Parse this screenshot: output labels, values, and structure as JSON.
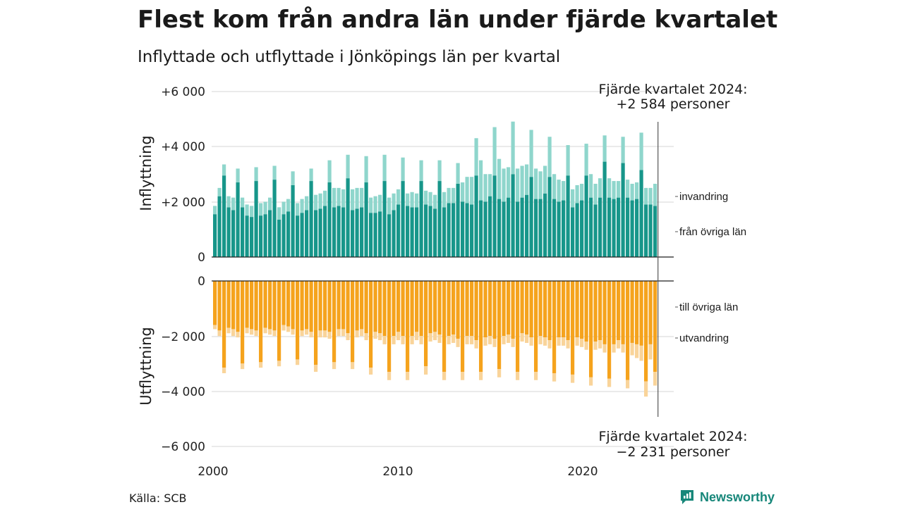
{
  "title": "Flest kom från andra län under fjärde kvartalet",
  "subtitle": "Inflyttade och utflyttade i Jönköpings län per kvartal",
  "source": "Källa: SCB",
  "brand": "Newsworthy",
  "colors": {
    "in_other": "#17968a",
    "in_immig": "#8fd6cc",
    "out_other": "#f5a31d",
    "out_emig": "#f9d49a",
    "grid": "#dddddd"
  },
  "top_annotation": {
    "line1": "Fjärde kvartalet 2024:",
    "line2": "+2 584 personer"
  },
  "bottom_annotation": {
    "line1": "Fjärde kvartalet 2024:",
    "line2": "−2 231 personer"
  },
  "chart_data": {
    "type": "bar",
    "stacked": true,
    "x_start": "2000Q1",
    "x_ticks": [
      "2000",
      "2010",
      "2020"
    ],
    "panels": [
      {
        "ylabel": "Inflyttning",
        "ylim": [
          0,
          6000
        ],
        "yticks": [
          0,
          2000,
          4000,
          6000
        ],
        "ytick_labels": [
          "0",
          "+2 000",
          "+4 000",
          "+6 000"
        ],
        "series": [
          {
            "name": "från övriga län",
            "values": [
              1550,
              2200,
              2950,
              1800,
              1700,
              2700,
              1800,
              1500,
              1450,
              2750,
              1500,
              1550,
              1700,
              2800,
              1350,
              1550,
              1650,
              2600,
              1500,
              1600,
              1700,
              2750,
              1700,
              1750,
              1850,
              2700,
              1800,
              1850,
              1800,
              2850,
              1700,
              1750,
              1800,
              2700,
              1600,
              1600,
              1650,
              2750,
              1550,
              1700,
              1900,
              2750,
              1850,
              1800,
              1800,
              2750,
              1900,
              1850,
              1750,
              2750,
              1800,
              1950,
              1950,
              2650,
              2000,
              1950,
              1900,
              2950,
              2050,
              2000,
              2200,
              2950,
              2100,
              2000,
              2150,
              3000,
              2000,
              2150,
              2250,
              2900,
              2100,
              2100,
              2300,
              2900,
              2100,
              2000,
              2050,
              2950,
              1800,
              1950,
              2050,
              2950,
              2150,
              1900,
              2150,
              3450,
              2150,
              2100,
              2150,
              3400,
              2150,
              2050,
              2100,
              3150,
              1900,
              1900,
              1850
            ]
          },
          {
            "name": "invandring",
            "values": [
              300,
              300,
              400,
              400,
              450,
              500,
              350,
              400,
              400,
              500,
              450,
              450,
              450,
              500,
              450,
              450,
              450,
              500,
              450,
              500,
              500,
              450,
              550,
              550,
              550,
              800,
              700,
              650,
              650,
              850,
              750,
              750,
              700,
              950,
              550,
              600,
              600,
              950,
              600,
              600,
              550,
              850,
              450,
              550,
              500,
              750,
              500,
              500,
              500,
              750,
              550,
              550,
              550,
              750,
              700,
              950,
              1000,
              1350,
              1450,
              1000,
              800,
              1750,
              1450,
              1200,
              1100,
              1900,
              1200,
              1150,
              1100,
              1700,
              1100,
              1000,
              1000,
              1450,
              900,
              800,
              700,
              1100,
              650,
              650,
              600,
              1150,
              850,
              750,
              700,
              950,
              700,
              650,
              600,
              950,
              650,
              600,
              600,
              1350,
              600,
              600,
              800
            ]
          }
        ]
      },
      {
        "ylabel": "Utflyttning",
        "ylim": [
          -6000,
          0
        ],
        "yticks": [
          0,
          -2000,
          -4000,
          -6000
        ],
        "ytick_labels": [
          "0",
          "−2 000",
          "−4 000",
          "−6 000"
        ],
        "series": [
          {
            "name": "till övriga län",
            "values": [
              -1600,
              -1800,
              -3150,
              -1700,
              -1750,
              -1850,
              -3000,
              -1700,
              -1750,
              -1800,
              -2950,
              -1700,
              -1750,
              -1800,
              -2900,
              -1600,
              -1650,
              -1750,
              -2850,
              -1800,
              -1750,
              -1850,
              -3050,
              -1800,
              -1800,
              -1850,
              -2950,
              -1750,
              -1750,
              -1900,
              -2950,
              -1800,
              -1750,
              -1900,
              -3150,
              -1850,
              -1900,
              -2000,
              -3300,
              -2000,
              -1850,
              -2000,
              -3300,
              -2000,
              -1850,
              -2000,
              -3100,
              -1900,
              -1850,
              -1950,
              -3300,
              -2000,
              -1950,
              -2100,
              -3300,
              -2000,
              -2000,
              -2150,
              -3300,
              -2050,
              -2000,
              -2100,
              -3200,
              -2000,
              -1950,
              -2100,
              -3300,
              -1900,
              -1950,
              -2050,
              -3300,
              -2000,
              -2050,
              -2150,
              -3350,
              -2050,
              -2050,
              -2150,
              -3400,
              -2050,
              -2100,
              -2200,
              -3500,
              -2200,
              -2150,
              -2300,
              -3550,
              -2300,
              -2150,
              -2300,
              -3600,
              -2250,
              -2300,
              -2350,
              -3650,
              -2300,
              -3300
            ]
          },
          {
            "name": "utvandring",
            "values": [
              -150,
              -200,
              -200,
              -200,
              -250,
              -200,
              -200,
              -200,
              -200,
              -200,
              -200,
              -200,
              -200,
              -200,
              -200,
              -200,
              -200,
              -200,
              -200,
              -200,
              -200,
              -200,
              -250,
              -250,
              -250,
              -250,
              -250,
              -250,
              -250,
              -250,
              -250,
              -250,
              -250,
              -250,
              -250,
              -250,
              -250,
              -300,
              -300,
              -300,
              -300,
              -300,
              -300,
              -300,
              -300,
              -300,
              -300,
              -300,
              -300,
              -300,
              -300,
              -300,
              -300,
              -300,
              -300,
              -300,
              -300,
              -300,
              -300,
              -300,
              -300,
              -300,
              -300,
              -300,
              -300,
              -300,
              -300,
              -300,
              -300,
              -300,
              -300,
              -300,
              -300,
              -300,
              -300,
              -300,
              -300,
              -300,
              -300,
              -300,
              -300,
              -300,
              -300,
              -300,
              -300,
              -300,
              -300,
              -300,
              -300,
              -300,
              -300,
              -450,
              -500,
              -550,
              -550,
              -550,
              -500
            ]
          }
        ]
      }
    ]
  }
}
